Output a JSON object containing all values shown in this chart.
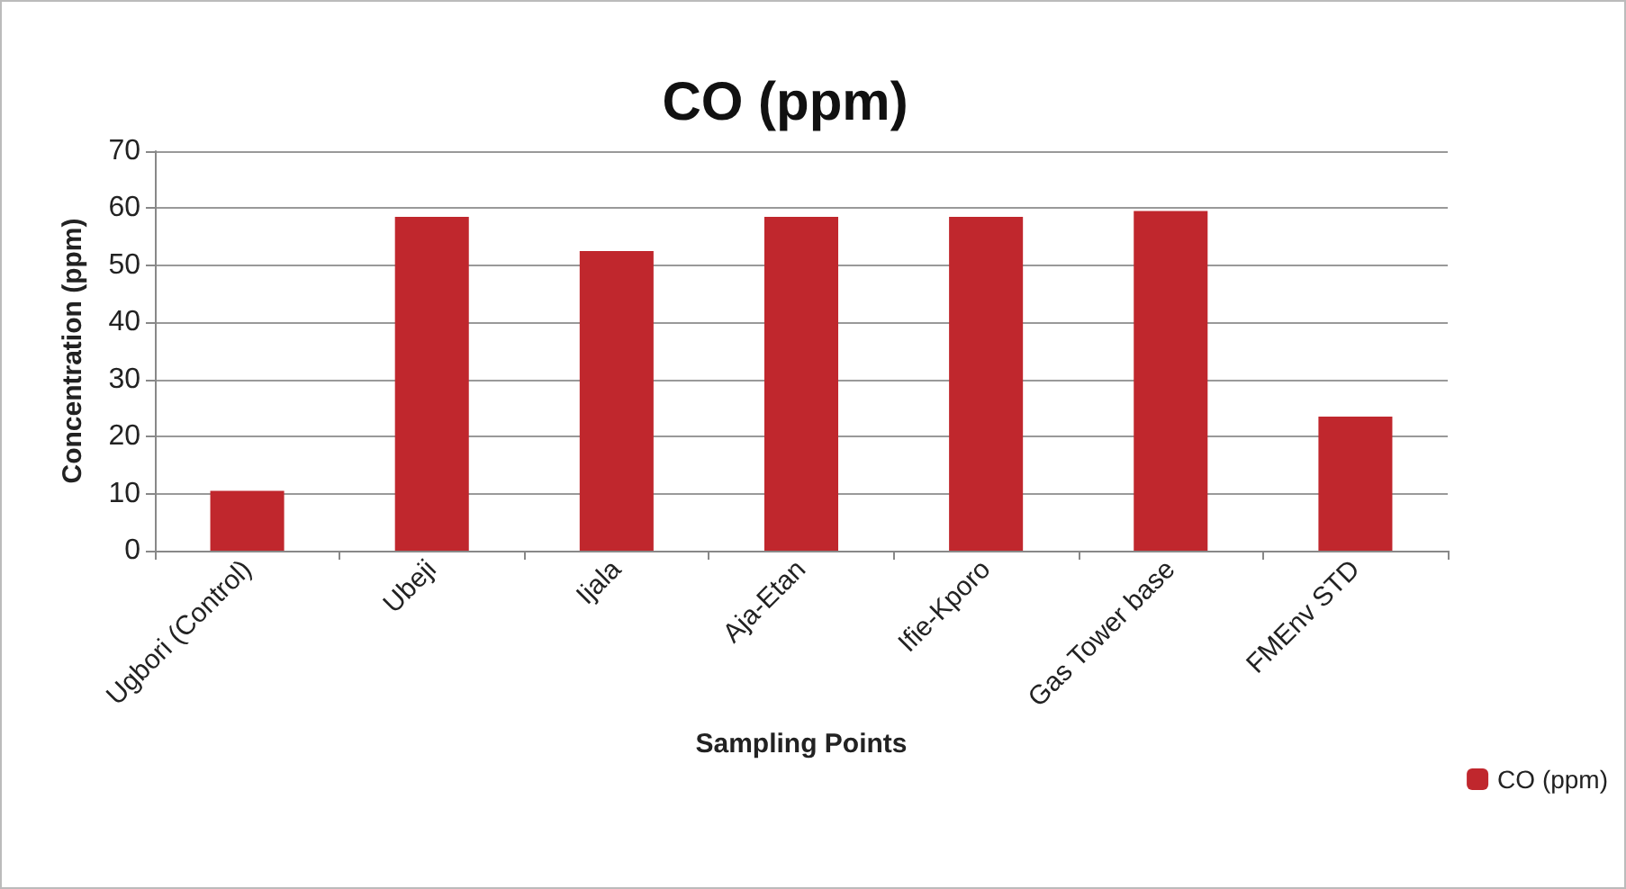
{
  "chart_data": {
    "type": "bar",
    "title": "CO (ppm)",
    "xlabel": "Sampling Points",
    "ylabel": "Concentration (ppm)",
    "categories": [
      "Ugbori (Control)",
      "Ubeji",
      "Ijala",
      "Aja-Etan",
      "Ifie-Kporo",
      "Gas Tower base",
      "FMEnv STD"
    ],
    "series": [
      {
        "name": "CO (ppm)",
        "color": "#c0272d",
        "values": [
          10.5,
          58.5,
          52.5,
          58.5,
          58.5,
          59.5,
          23.5
        ]
      }
    ],
    "ylim": [
      0,
      70
    ],
    "yticks": [
      0,
      10,
      20,
      30,
      40,
      50,
      60,
      70
    ],
    "grid": "y",
    "legend": "right"
  }
}
